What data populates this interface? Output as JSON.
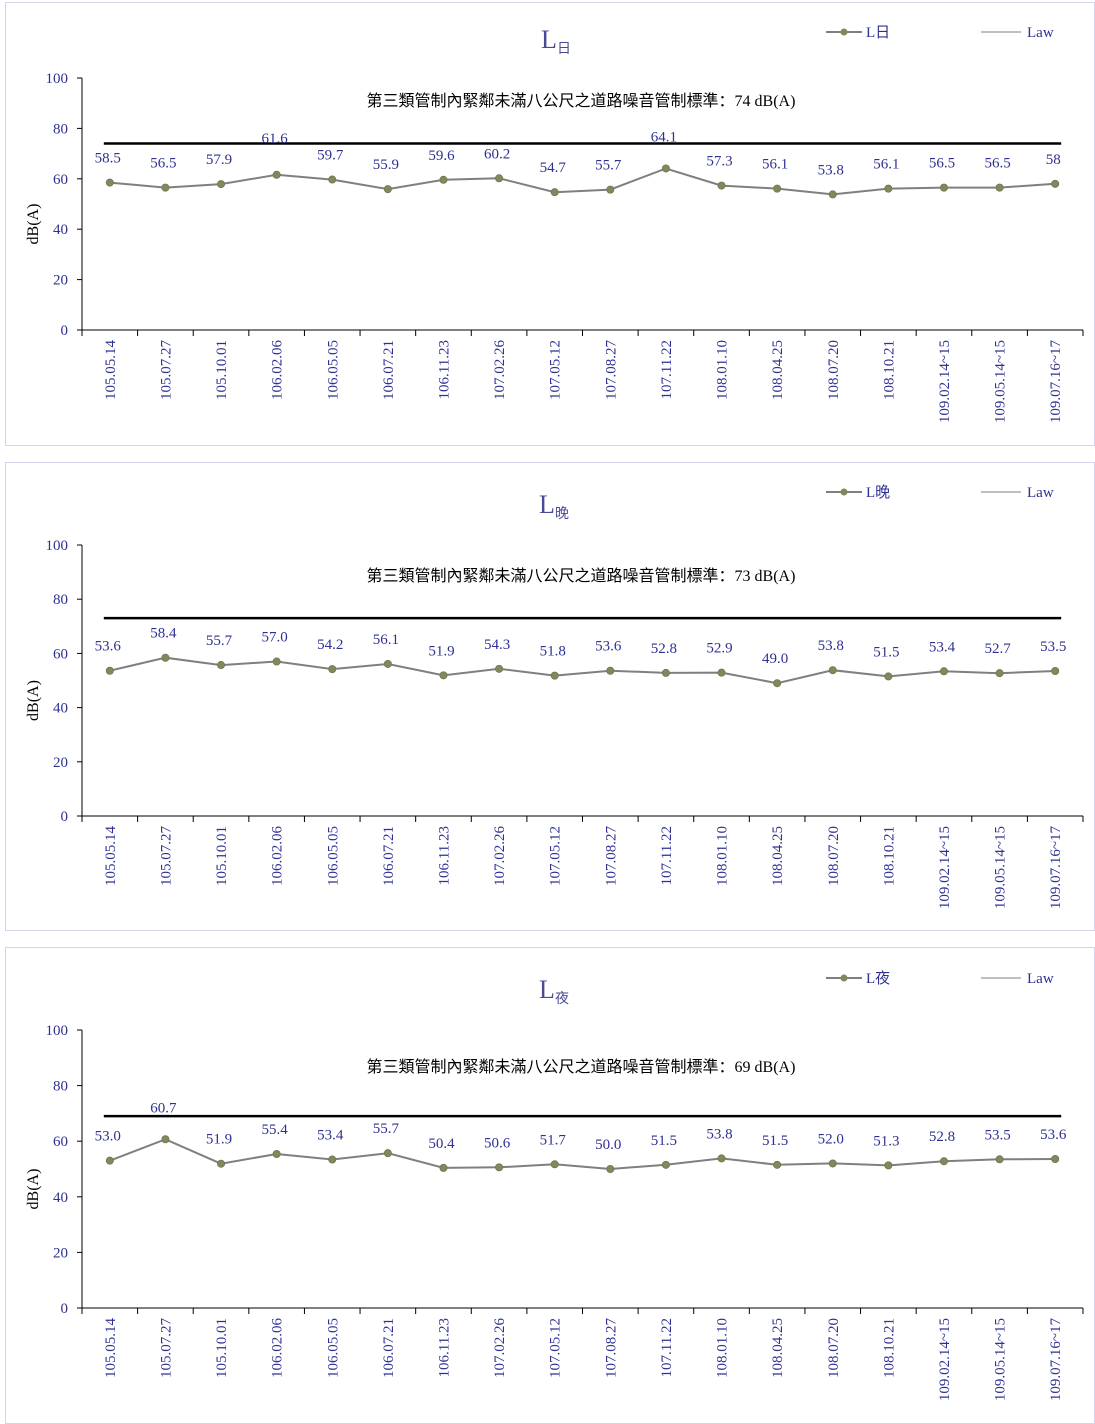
{
  "chart_data": [
    {
      "type": "line",
      "title": "L",
      "title_sub": "日",
      "ylabel": "dB(A)",
      "ylim": [
        0,
        100
      ],
      "yticks": [
        "0",
        "20",
        "40",
        "60",
        "80",
        "100"
      ],
      "categories": [
        "105.05.14",
        "105.07.27",
        "105.10.01",
        "106.02.06",
        "106.05.05",
        "106.07.21",
        "106.11.23",
        "107.02.26",
        "107.05.12",
        "107.08.27",
        "107.11.22",
        "108.01.10",
        "108.04.25",
        "108.07.20",
        "108.10.21",
        "109.02.14~15",
        "109.05.14~15",
        "109.07.16~17"
      ],
      "series": [
        {
          "name": "L日",
          "values": [
            58.5,
            56.5,
            57.9,
            61.6,
            59.7,
            55.9,
            59.6,
            60.2,
            54.7,
            55.7,
            64.1,
            57.3,
            56.1,
            53.8,
            56.1,
            56.5,
            56.5,
            58
          ],
          "labels": [
            "58.5",
            "56.5",
            "57.9",
            "61.6",
            "59.7",
            "55.9",
            "59.6",
            "60.2",
            "54.7",
            "55.7",
            "64.1",
            "57.3",
            "56.1",
            "53.8",
            "56.1",
            "56.5",
            "56.5",
            "58"
          ]
        },
        {
          "name": "Law",
          "values": [
            74,
            74,
            74,
            74,
            74,
            74,
            74,
            74,
            74,
            74,
            74,
            74,
            74,
            74,
            74,
            74,
            74,
            74
          ]
        }
      ],
      "annotation": "第三類管制內緊鄰未滿八公尺之道路噪音管制標準：74 dB(A)",
      "legend_position": "top-right",
      "grid": false,
      "colors": {
        "series": "#7f7f7f",
        "marker": "#7f8a5c",
        "law": "#000000",
        "law_legend": "#bfbfbf",
        "label": "#2e3192",
        "title": "#4a4a96"
      }
    },
    {
      "type": "line",
      "title": "L",
      "title_sub": "晚",
      "ylabel": "dB(A)",
      "ylim": [
        0,
        100
      ],
      "yticks": [
        "0",
        "20",
        "40",
        "60",
        "80",
        "100"
      ],
      "categories": [
        "105.05.14",
        "105.07.27",
        "105.10.01",
        "106.02.06",
        "106.05.05",
        "106.07.21",
        "106.11.23",
        "107.02.26",
        "107.05.12",
        "107.08.27",
        "107.11.22",
        "108.01.10",
        "108.04.25",
        "108.07.20",
        "108.10.21",
        "109.02.14~15",
        "109.05.14~15",
        "109.07.16~17"
      ],
      "series": [
        {
          "name": "L晚",
          "values": [
            53.6,
            58.4,
            55.7,
            57.0,
            54.2,
            56.1,
            51.9,
            54.3,
            51.8,
            53.6,
            52.8,
            52.9,
            49.0,
            53.8,
            51.5,
            53.4,
            52.7,
            53.5
          ],
          "labels": [
            "53.6",
            "58.4",
            "55.7",
            "57.0",
            "54.2",
            "56.1",
            "51.9",
            "54.3",
            "51.8",
            "53.6",
            "52.8",
            "52.9",
            "49.0",
            "53.8",
            "51.5",
            "53.4",
            "52.7",
            "53.5"
          ]
        },
        {
          "name": "Law",
          "values": [
            73,
            73,
            73,
            73,
            73,
            73,
            73,
            73,
            73,
            73,
            73,
            73,
            73,
            73,
            73,
            73,
            73,
            73
          ]
        }
      ],
      "annotation": "第三類管制內緊鄰未滿八公尺之道路噪音管制標準：73 dB(A)",
      "legend_position": "top-right",
      "grid": false,
      "colors": {
        "series": "#7f7f7f",
        "marker": "#7f8a5c",
        "law": "#000000",
        "law_legend": "#bfbfbf",
        "label": "#2e3192",
        "title": "#4a4a96"
      }
    },
    {
      "type": "line",
      "title": "L",
      "title_sub": "夜",
      "ylabel": "dB(A)",
      "ylim": [
        0,
        100
      ],
      "yticks": [
        "0",
        "20",
        "40",
        "60",
        "80",
        "100"
      ],
      "categories": [
        "105.05.14",
        "105.07.27",
        "105.10.01",
        "106.02.06",
        "106.05.05",
        "106.07.21",
        "106.11.23",
        "107.02.26",
        "107.05.12",
        "107.08.27",
        "107.11.22",
        "108.01.10",
        "108.04.25",
        "108.07.20",
        "108.10.21",
        "109.02.14~15",
        "109.05.14~15",
        "109.07.16~17"
      ],
      "series": [
        {
          "name": "L夜",
          "values": [
            53.0,
            60.7,
            51.9,
            55.4,
            53.4,
            55.7,
            50.4,
            50.6,
            51.7,
            50.0,
            51.5,
            53.8,
            51.5,
            52.0,
            51.3,
            52.8,
            53.5,
            53.6
          ],
          "labels": [
            "53.0",
            "60.7",
            "51.9",
            "55.4",
            "53.4",
            "55.7",
            "50.4",
            "50.6",
            "51.7",
            "50.0",
            "51.5",
            "53.8",
            "51.5",
            "52.0",
            "51.3",
            "52.8",
            "53.5",
            "53.6"
          ]
        },
        {
          "name": "Law",
          "values": [
            69,
            69,
            69,
            69,
            69,
            69,
            69,
            69,
            69,
            69,
            69,
            69,
            69,
            69,
            69,
            69,
            69,
            69
          ]
        }
      ],
      "annotation": "第三類管制內緊鄰未滿八公尺之道路噪音管制標準：69 dB(A)",
      "legend_position": "top-right",
      "grid": false,
      "colors": {
        "series": "#7f7f7f",
        "marker": "#7f8a5c",
        "law": "#000000",
        "law_legend": "#bfbfbf",
        "label": "#2e3192",
        "title": "#4a4a96"
      }
    }
  ]
}
